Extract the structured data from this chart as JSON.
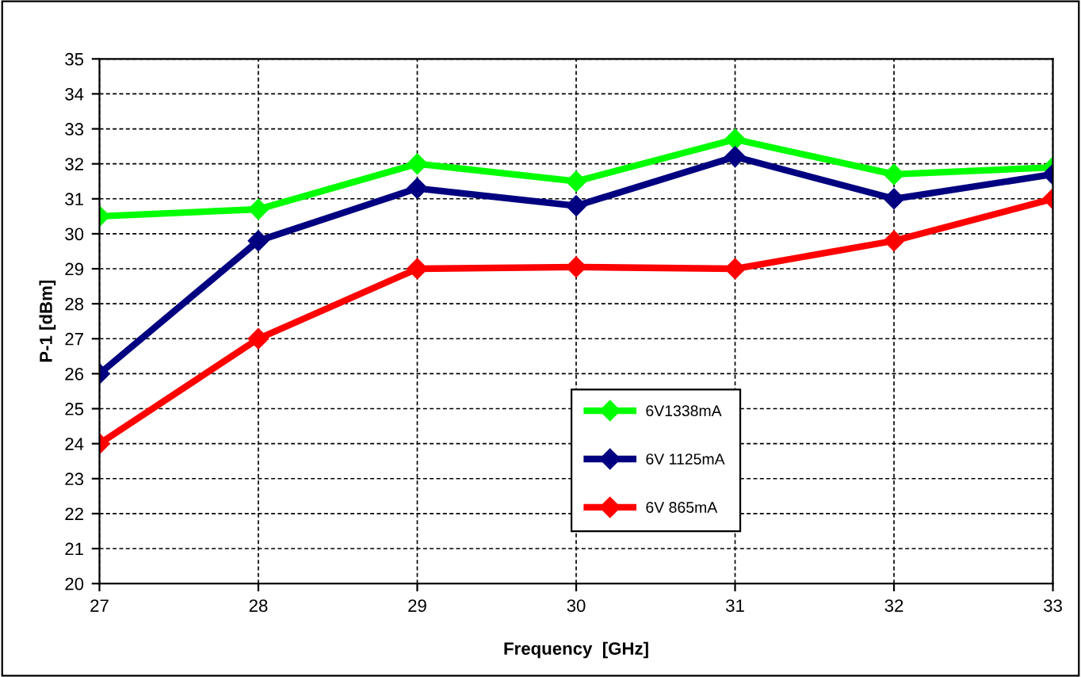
{
  "chart_data": {
    "type": "line",
    "xlabel": "Frequency  [GHz]",
    "ylabel": "P-1 [dBm]",
    "x": [
      27,
      28,
      29,
      30,
      31,
      32,
      33
    ],
    "series": [
      {
        "name": "6V1338mA",
        "color": "#00ff00",
        "values": [
          30.5,
          30.7,
          32.0,
          31.5,
          32.7,
          31.7,
          31.9
        ]
      },
      {
        "name": "6V 1125mA",
        "color": "#000080",
        "values": [
          26.0,
          29.8,
          31.3,
          30.8,
          32.2,
          31.0,
          31.7
        ]
      },
      {
        "name": "6V 865mA",
        "color": "#ff0000",
        "values": [
          24.0,
          27.0,
          29.0,
          29.05,
          29.0,
          29.8,
          31.0
        ]
      }
    ],
    "xlim": [
      27,
      33
    ],
    "xticks": [
      27,
      28,
      29,
      30,
      31,
      32,
      33
    ],
    "ylim": [
      20,
      35
    ],
    "yticks": [
      20,
      21,
      22,
      23,
      24,
      25,
      26,
      27,
      28,
      29,
      30,
      31,
      32,
      33,
      34,
      35
    ],
    "grid": true,
    "legend": "bottom right",
    "marker": "diamond",
    "line_style": "solid"
  }
}
